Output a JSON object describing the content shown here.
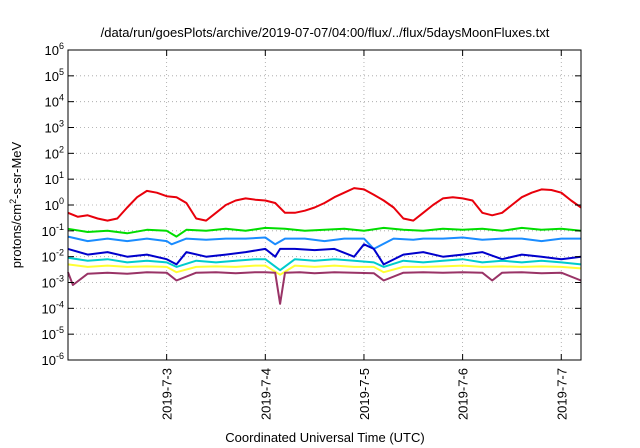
{
  "chart_data": {
    "type": "line",
    "title": "/data/run/goesPlots/archive/2019-07-07/04:00/flux/../flux/5daysMoonFluxes.txt",
    "xlabel": "Coordinated Universal Time (UTC)",
    "ylabel": "protons/cm2-s-sr-MeV",
    "ylabel_base": "protons/cm",
    "ylabel_sup": "2",
    "ylabel_rest": "-s-sr-MeV",
    "yscale": "log",
    "ylim": [
      1e-06,
      1000000.0
    ],
    "xlim": [
      2.0,
      7.2
    ],
    "x_unit": "days of July 2019",
    "grid": true,
    "x_ticks": [
      {
        "value": 3,
        "label": "2019-7-3"
      },
      {
        "value": 4,
        "label": "2019-7-4"
      },
      {
        "value": 5,
        "label": "2019-7-5"
      },
      {
        "value": 6,
        "label": "2019-7-6"
      },
      {
        "value": 7,
        "label": "2019-7-7"
      }
    ],
    "y_ticks": [
      {
        "value": 1e-06,
        "base": "10",
        "exp": "-6"
      },
      {
        "value": 1e-05,
        "base": "10",
        "exp": "-5"
      },
      {
        "value": 0.0001,
        "base": "10",
        "exp": "-4"
      },
      {
        "value": 0.001,
        "base": "10",
        "exp": "-3"
      },
      {
        "value": 0.01,
        "base": "10",
        "exp": "-2"
      },
      {
        "value": 0.1,
        "base": "10",
        "exp": "-1"
      },
      {
        "value": 1,
        "base": "10",
        "exp": "0"
      },
      {
        "value": 10.0,
        "base": "10",
        "exp": "1"
      },
      {
        "value": 100.0,
        "base": "10",
        "exp": "2"
      },
      {
        "value": 1000.0,
        "base": "10",
        "exp": "3"
      },
      {
        "value": 10000.0,
        "base": "10",
        "exp": "4"
      },
      {
        "value": 100000.0,
        "base": "10",
        "exp": "5"
      },
      {
        "value": 1000000.0,
        "base": "10",
        "exp": "6"
      }
    ],
    "series": [
      {
        "color": "#e8000b",
        "x": [
          2.0,
          2.1,
          2.2,
          2.3,
          2.4,
          2.5,
          2.6,
          2.7,
          2.8,
          2.9,
          3.0,
          3.1,
          3.2,
          3.3,
          3.4,
          3.5,
          3.6,
          3.7,
          3.8,
          3.9,
          4.0,
          4.1,
          4.2,
          4.3,
          4.4,
          4.5,
          4.6,
          4.7,
          4.8,
          4.9,
          5.0,
          5.1,
          5.2,
          5.3,
          5.4,
          5.5,
          5.6,
          5.7,
          5.8,
          5.9,
          6.0,
          6.1,
          6.2,
          6.3,
          6.4,
          6.5,
          6.6,
          6.7,
          6.8,
          6.9,
          7.0,
          7.1,
          7.2
        ],
        "y": [
          0.5,
          0.35,
          0.4,
          0.3,
          0.25,
          0.3,
          0.8,
          2.0,
          3.5,
          3.0,
          2.2,
          2.0,
          1.2,
          0.3,
          0.25,
          0.5,
          1.0,
          1.5,
          1.8,
          1.6,
          1.5,
          1.2,
          0.5,
          0.5,
          0.6,
          0.8,
          1.2,
          2.0,
          3.0,
          4.5,
          4.0,
          2.5,
          1.5,
          0.8,
          0.3,
          0.25,
          0.5,
          1.0,
          1.8,
          2.0,
          1.8,
          1.5,
          0.5,
          0.4,
          0.5,
          1.0,
          2.0,
          3.0,
          4.0,
          3.8,
          3.0,
          1.5,
          0.8
        ]
      },
      {
        "color": "#00dd00",
        "x": [
          2.0,
          2.2,
          2.4,
          2.6,
          2.8,
          3.0,
          3.1,
          3.2,
          3.4,
          3.6,
          3.8,
          4.0,
          4.2,
          4.4,
          4.6,
          4.8,
          5.0,
          5.2,
          5.4,
          5.6,
          5.8,
          6.0,
          6.2,
          6.4,
          6.6,
          6.8,
          7.0,
          7.2
        ],
        "y": [
          0.12,
          0.09,
          0.1,
          0.08,
          0.11,
          0.1,
          0.06,
          0.11,
          0.1,
          0.12,
          0.1,
          0.13,
          0.12,
          0.1,
          0.11,
          0.12,
          0.1,
          0.13,
          0.11,
          0.1,
          0.12,
          0.11,
          0.12,
          0.1,
          0.13,
          0.11,
          0.12,
          0.1
        ]
      },
      {
        "color": "#1a8cff",
        "x": [
          2.0,
          2.2,
          2.4,
          2.6,
          2.8,
          3.0,
          3.05,
          3.2,
          3.4,
          3.6,
          3.8,
          4.0,
          4.1,
          4.2,
          4.4,
          4.6,
          4.8,
          5.0,
          5.1,
          5.3,
          5.5,
          5.6,
          5.8,
          6.0,
          6.2,
          6.4,
          6.6,
          6.8,
          7.0,
          7.2
        ],
        "y": [
          0.06,
          0.04,
          0.05,
          0.04,
          0.05,
          0.04,
          0.03,
          0.05,
          0.045,
          0.05,
          0.05,
          0.055,
          0.03,
          0.05,
          0.05,
          0.04,
          0.05,
          0.05,
          0.02,
          0.05,
          0.045,
          0.05,
          0.05,
          0.055,
          0.045,
          0.05,
          0.05,
          0.04,
          0.05,
          0.05
        ]
      },
      {
        "color": "#0000cc",
        "x": [
          2.0,
          2.2,
          2.4,
          2.6,
          2.8,
          3.0,
          3.1,
          3.2,
          3.4,
          3.6,
          3.8,
          4.0,
          4.1,
          4.15,
          4.3,
          4.5,
          4.7,
          4.9,
          5.0,
          5.1,
          5.2,
          5.4,
          5.6,
          5.8,
          6.0,
          6.2,
          6.4,
          6.6,
          6.8,
          7.0,
          7.2
        ],
        "y": [
          0.02,
          0.012,
          0.015,
          0.01,
          0.012,
          0.008,
          0.005,
          0.015,
          0.01,
          0.012,
          0.015,
          0.02,
          0.01,
          0.02,
          0.02,
          0.018,
          0.02,
          0.01,
          0.03,
          0.02,
          0.005,
          0.012,
          0.015,
          0.01,
          0.012,
          0.015,
          0.008,
          0.012,
          0.01,
          0.008,
          0.01
        ]
      },
      {
        "color": "#00cccc",
        "x": [
          2.0,
          2.2,
          2.4,
          2.6,
          2.8,
          3.0,
          3.1,
          3.3,
          3.5,
          3.7,
          3.9,
          4.0,
          4.15,
          4.3,
          4.5,
          4.7,
          4.9,
          5.1,
          5.2,
          5.4,
          5.6,
          5.8,
          6.0,
          6.2,
          6.4,
          6.6,
          6.8,
          7.0,
          7.2
        ],
        "y": [
          0.009,
          0.007,
          0.008,
          0.006,
          0.007,
          0.006,
          0.004,
          0.007,
          0.006,
          0.007,
          0.008,
          0.008,
          0.003,
          0.008,
          0.007,
          0.008,
          0.007,
          0.006,
          0.004,
          0.007,
          0.006,
          0.007,
          0.008,
          0.006,
          0.007,
          0.006,
          0.007,
          0.006,
          0.005
        ]
      },
      {
        "color": "#ffff33",
        "x": [
          2.0,
          2.2,
          2.4,
          2.6,
          2.8,
          3.0,
          3.1,
          3.3,
          3.5,
          3.7,
          3.9,
          4.0,
          4.15,
          4.3,
          4.5,
          4.7,
          4.9,
          5.1,
          5.2,
          5.4,
          5.6,
          5.8,
          6.0,
          6.2,
          6.4,
          6.6,
          6.8,
          7.0,
          7.2
        ],
        "y": [
          0.005,
          0.004,
          0.0045,
          0.004,
          0.0042,
          0.004,
          0.0025,
          0.004,
          0.0042,
          0.004,
          0.0045,
          0.0045,
          0.002,
          0.0045,
          0.004,
          0.0045,
          0.004,
          0.004,
          0.0025,
          0.004,
          0.004,
          0.0042,
          0.0045,
          0.004,
          0.0042,
          0.004,
          0.0042,
          0.004,
          0.0035
        ]
      },
      {
        "color": "#993366",
        "x": [
          2.0,
          2.05,
          2.2,
          2.4,
          2.6,
          2.8,
          3.0,
          3.1,
          3.3,
          3.5,
          3.7,
          3.9,
          4.0,
          4.1,
          4.15,
          4.2,
          4.35,
          4.5,
          4.7,
          4.9,
          5.1,
          5.2,
          5.4,
          5.6,
          5.8,
          6.0,
          6.2,
          6.3,
          6.4,
          6.6,
          6.8,
          7.0,
          7.2
        ],
        "y": [
          0.0025,
          0.0008,
          0.0022,
          0.0024,
          0.0022,
          0.0025,
          0.0024,
          0.0012,
          0.0024,
          0.0025,
          0.0023,
          0.0025,
          0.0025,
          0.0024,
          0.00015,
          0.0024,
          0.0025,
          0.0023,
          0.0025,
          0.0024,
          0.0023,
          0.0012,
          0.0024,
          0.0025,
          0.0024,
          0.0025,
          0.0024,
          0.0012,
          0.0024,
          0.0025,
          0.0023,
          0.0024,
          0.0012
        ]
      }
    ]
  }
}
